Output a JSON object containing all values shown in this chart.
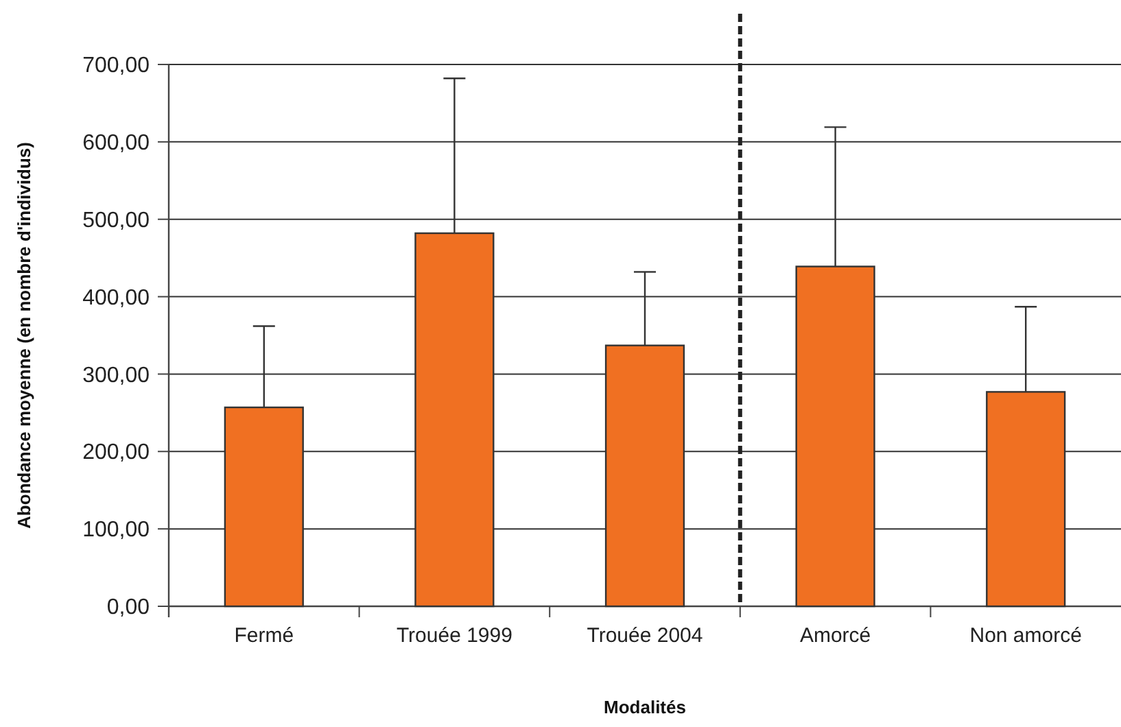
{
  "chart_data": {
    "type": "bar",
    "xlabel": "Modalités",
    "ylabel": "Abondance moyenne (en nombre d'individus)",
    "categories": [
      "Fermé",
      "Trouée 1999",
      "Trouée 2004",
      "Amorcé",
      "Non amorcé"
    ],
    "values": [
      257,
      482,
      337,
      439,
      277
    ],
    "errors": [
      [
        257,
        362
      ],
      [
        482,
        682
      ],
      [
        337,
        432
      ],
      [
        439,
        619
      ],
      [
        277,
        387
      ]
    ],
    "color": "#f07022",
    "ylim": [
      0,
      700
    ],
    "yticks": [
      {
        "value": 0,
        "label": "0,00"
      },
      {
        "value": 100,
        "label": "100,00"
      },
      {
        "value": 200,
        "label": "200,00"
      },
      {
        "value": 300,
        "label": "300,00"
      },
      {
        "value": 400,
        "label": "400,00"
      },
      {
        "value": 500,
        "label": "500,00"
      },
      {
        "value": 600,
        "label": "600,00"
      },
      {
        "value": 700,
        "label": "700,00"
      }
    ],
    "grid": "y"
  }
}
